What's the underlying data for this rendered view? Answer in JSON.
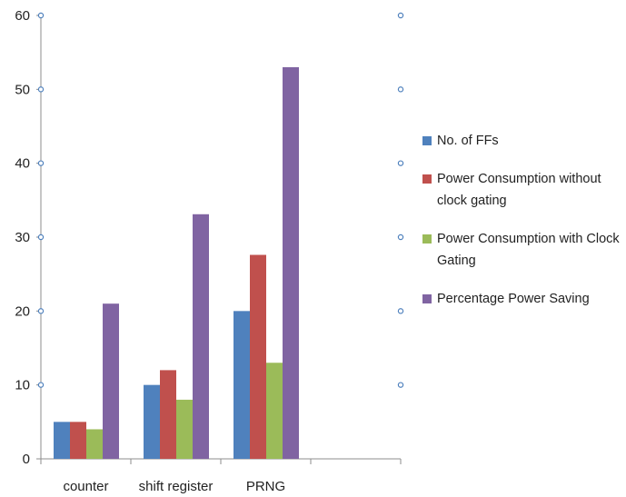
{
  "chart_data": {
    "type": "bar",
    "title": "",
    "xlabel": "",
    "ylabel": "",
    "ylim": [
      0,
      60
    ],
    "yticks": [
      "0",
      "10",
      "20",
      "30",
      "40",
      "50",
      "60"
    ],
    "categories": [
      "counter",
      "shift register",
      "PRNG",
      ""
    ],
    "series": [
      {
        "name": "No. of  FFs",
        "color": "#4F81BD",
        "values": [
          5,
          10,
          20,
          null
        ]
      },
      {
        "name": "Power Consumption without clock gating",
        "color": "#C0504D",
        "values": [
          5,
          12,
          27.6,
          null
        ]
      },
      {
        "name": "Power Consumption with Clock Gating",
        "color": "#9BBB59",
        "values": [
          4,
          8,
          13,
          null
        ]
      },
      {
        "name": "Percentage Power Saving",
        "color": "#8064A2",
        "values": [
          21,
          33.1,
          53,
          null
        ]
      }
    ],
    "legend_position": "right",
    "grid": false
  }
}
